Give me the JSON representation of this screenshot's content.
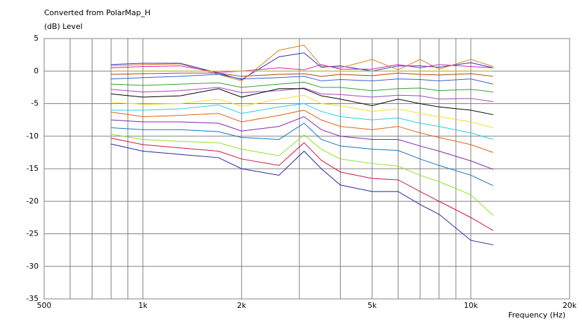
{
  "chart_data": {
    "type": "line",
    "title": "Converted from PolarMap_H",
    "ylabel": "(dB)  Level",
    "xlabel": "Frequency  (Hz)",
    "xscale": "log",
    "grid": true,
    "xlim": [
      500,
      20000
    ],
    "ylim": [
      -35,
      5
    ],
    "xticks": [
      {
        "value": 500,
        "label": "500"
      },
      {
        "value": 1000,
        "label": "1k"
      },
      {
        "value": 2000,
        "label": "2k"
      },
      {
        "value": 5000,
        "label": "5k"
      },
      {
        "value": 10000,
        "label": "10k"
      },
      {
        "value": 20000,
        "label": "20k"
      }
    ],
    "xminorticks": [
      600,
      700,
      800,
      900,
      3000,
      4000,
      6000,
      7000,
      8000,
      9000
    ],
    "yticks": [
      5,
      0,
      -5,
      -10,
      -15,
      -20,
      -25,
      -30,
      -35
    ],
    "x": [
      800,
      1000,
      1300,
      1700,
      2000,
      2600,
      3100,
      3500,
      4000,
      5000,
      6000,
      7000,
      8000,
      10000,
      11700
    ],
    "series": [
      {
        "color": "#2030c0",
        "values": [
          1,
          1.2,
          1.2,
          -0.3,
          -1.3,
          2.2,
          2.8,
          0.6,
          0.8,
          0,
          0.8,
          0.8,
          0.6,
          1.3,
          0.5
        ]
      },
      {
        "color": "#e08020",
        "values": [
          0.8,
          1,
          1.1,
          -0.5,
          -1.5,
          3.2,
          4,
          0.8,
          0.5,
          1.8,
          0.2,
          1.8,
          0.3,
          1.8,
          0.7
        ]
      },
      {
        "color": "#d020c0",
        "values": [
          0.5,
          0.7,
          0.8,
          -0.2,
          0,
          0.5,
          0.2,
          1,
          0.3,
          0.3,
          1,
          0.5,
          1,
          0.7,
          0.5
        ]
      },
      {
        "color": "#c8c800",
        "values": [
          0,
          0,
          0,
          0,
          0,
          0,
          0,
          0,
          0,
          0,
          0,
          0,
          0,
          0,
          0
        ]
      },
      {
        "color": "#b04000",
        "values": [
          -0.5,
          -0.4,
          -0.3,
          -0.3,
          -0.8,
          -0.5,
          -0.4,
          -0.8,
          -0.5,
          -0.7,
          -0.3,
          -0.5,
          -0.6,
          -0.4,
          -0.8
        ]
      },
      {
        "color": "#3060d0",
        "values": [
          -1.2,
          -1,
          -0.8,
          -0.5,
          -1.2,
          -1,
          -0.8,
          -1.5,
          -1.3,
          -1.5,
          -1.2,
          -1.3,
          -1.5,
          -1.2,
          -2
        ]
      },
      {
        "color": "#30a030",
        "values": [
          -2,
          -2.2,
          -2,
          -1.8,
          -2.5,
          -2,
          -1.7,
          -2.5,
          -2.5,
          -3,
          -2.7,
          -2.6,
          -3,
          -2.8,
          -3.2
        ]
      },
      {
        "color": "#a040c0",
        "values": [
          -2.8,
          -3.2,
          -3,
          -2.5,
          -3.3,
          -3,
          -2.6,
          -3.5,
          -3.6,
          -4,
          -3.7,
          -3.8,
          -4.3,
          -4.2,
          -4.7
        ]
      },
      {
        "color": "#000000",
        "values": [
          -3.5,
          -4,
          -3.8,
          -2.7,
          -4,
          -2.7,
          -2.7,
          -3.8,
          -4.3,
          -5.3,
          -4.3,
          -5,
          -5.5,
          -6,
          -6.7
        ]
      },
      {
        "color": "#f0e020",
        "values": [
          -4.8,
          -5.1,
          -5,
          -4.3,
          -5.4,
          -4.3,
          -3.7,
          -5,
          -5.3,
          -6.2,
          -5.8,
          -6.5,
          -7,
          -7.8,
          -8.7
        ]
      },
      {
        "color": "#20d0e0",
        "values": [
          -6,
          -6,
          -5.8,
          -5.2,
          -6.5,
          -5.5,
          -5,
          -6.2,
          -7,
          -7.5,
          -7.2,
          -8,
          -8.5,
          -9.5,
          -10.5
        ]
      },
      {
        "color": "#e06010",
        "values": [
          -6.3,
          -7,
          -6.8,
          -6.5,
          -7.8,
          -6.8,
          -6,
          -7.5,
          -8.5,
          -9,
          -8.5,
          -9.5,
          -10.2,
          -11.3,
          -12.5
        ]
      },
      {
        "color": "#8020b0",
        "values": [
          -7.5,
          -7.8,
          -7.8,
          -8,
          -9.2,
          -8.5,
          -7,
          -9,
          -10,
          -10.5,
          -10.5,
          -11.5,
          -12.3,
          -13.8,
          -15.1
        ]
      },
      {
        "color": "#1070c0",
        "values": [
          -8.7,
          -9,
          -9,
          -9.3,
          -10.2,
          -10.5,
          -8,
          -10.5,
          -11.5,
          -12,
          -12.2,
          -13.5,
          -14.5,
          -16,
          -17.6
        ]
      },
      {
        "color": "#90e020",
        "values": [
          -9.7,
          -10.5,
          -10.8,
          -11,
          -12,
          -13,
          -9.8,
          -12,
          -13.5,
          -14.2,
          -14.6,
          -16,
          -17,
          -19,
          -22.2
        ]
      },
      {
        "color": "#d01040",
        "values": [
          -10.3,
          -11.3,
          -11.8,
          -12.3,
          -13.5,
          -14.5,
          -11,
          -13.7,
          -15.5,
          -16.5,
          -16.7,
          -18.5,
          -20,
          -22.5,
          -24.5
        ]
      },
      {
        "color": "#2020a0",
        "values": [
          -11.2,
          -12.3,
          -12.8,
          -13.3,
          -15,
          -16,
          -12.3,
          -15,
          -17.5,
          -18.5,
          -18.5,
          -20.5,
          -22,
          -26,
          -26.7
        ]
      }
    ]
  }
}
